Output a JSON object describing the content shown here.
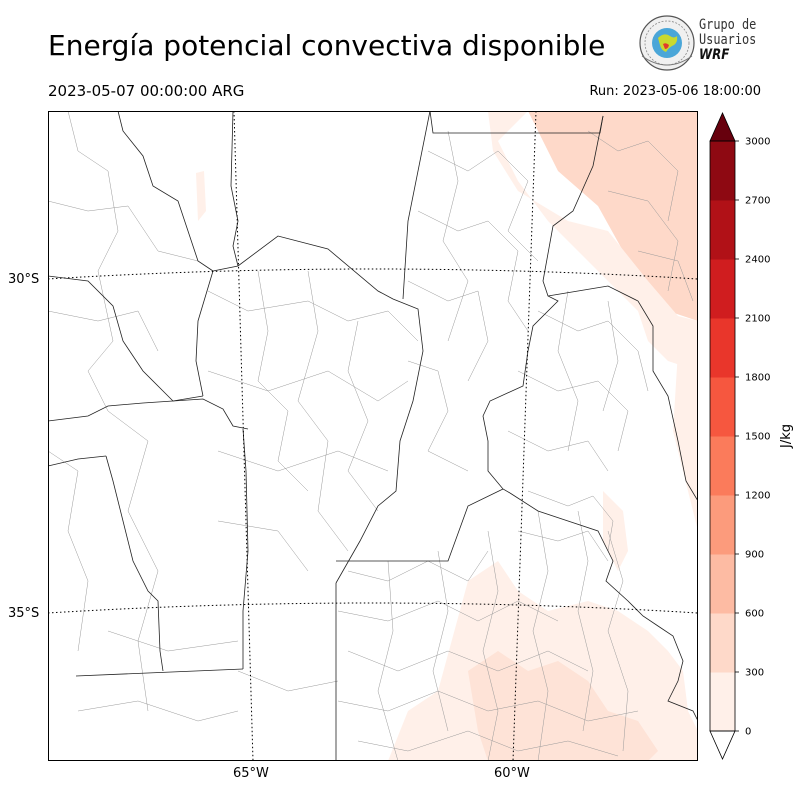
{
  "title": "Energía potencial convectiva disponible",
  "valid_time": "2023-05-07 00:00:00 ARG",
  "run_time": "Run: 2023-05-06 18:00:00",
  "logo": {
    "line1": "Grupo de",
    "line2": "Usuarios",
    "line3": "WRF",
    "icon": "globe-seal-icon"
  },
  "map": {
    "lat_labels": [
      "30°S",
      "35°S"
    ],
    "lon_labels": [
      "65°W",
      "60°W"
    ]
  },
  "colorbar": {
    "unit": "J/kg",
    "ticks": [
      "0",
      "300",
      "600",
      "900",
      "1200",
      "1500",
      "1800",
      "2100",
      "2400",
      "2700",
      "3000"
    ],
    "colors": [
      "#fff0e9",
      "#fed9c9",
      "#fdbba3",
      "#fc9b7c",
      "#fb7b5b",
      "#f6573f",
      "#e9362b",
      "#d01d1f",
      "#b11117",
      "#8e0912"
    ],
    "over_color": "#67000d"
  }
}
